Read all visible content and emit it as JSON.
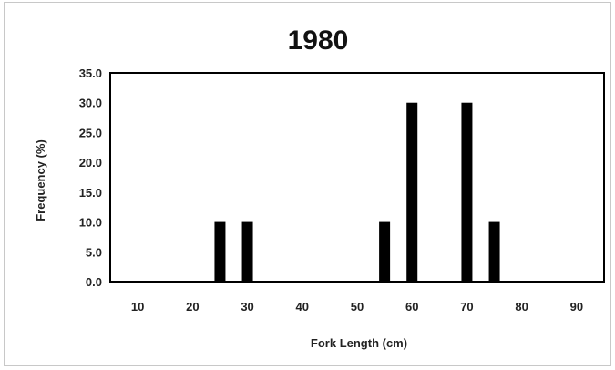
{
  "chart_data": {
    "type": "bar",
    "title": "1980",
    "xlabel": "Fork Length (cm)",
    "ylabel": "Frequency (%)",
    "x_ticks": [
      "10",
      "20",
      "30",
      "40",
      "50",
      "60",
      "70",
      "80",
      "90"
    ],
    "y_ticks": [
      "0.0",
      "5.0",
      "10.0",
      "15.0",
      "20.0",
      "25.0",
      "30.0",
      "35.0"
    ],
    "xlim": [
      5,
      95
    ],
    "ylim": [
      0,
      35
    ],
    "grid": false,
    "bar_color": "#000000",
    "x": [
      25,
      30,
      55,
      60,
      70,
      75
    ],
    "values": [
      10,
      10,
      10,
      30,
      30,
      10
    ]
  }
}
